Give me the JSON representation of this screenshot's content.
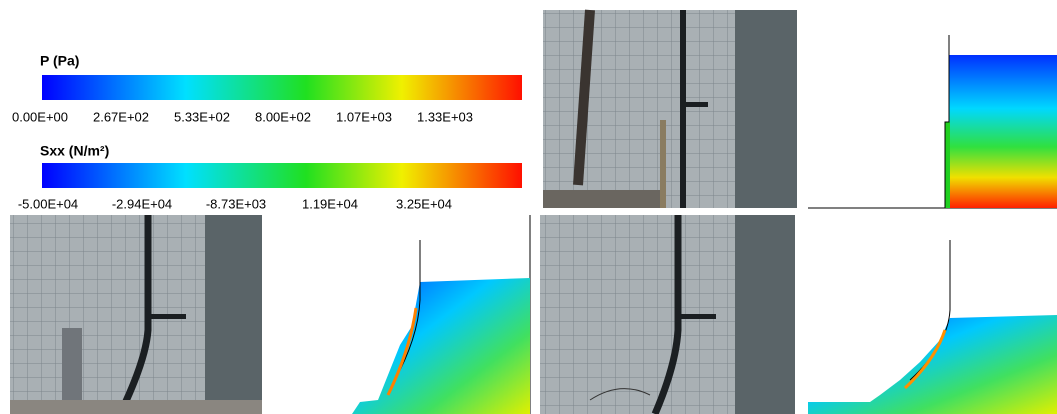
{
  "colorbars": [
    {
      "title": "P (Pa)",
      "ticks": [
        "0.00E+00",
        "2.67E+02",
        "5.33E+02",
        "8.00E+02",
        "1.07E+03",
        "1.33E+03"
      ]
    },
    {
      "title": "Sxx (N/m²)",
      "ticks": [
        "-5.00E+04",
        "-2.94E+04",
        "-8.73E+03",
        "1.19E+04",
        "3.25E+04"
      ]
    }
  ]
}
